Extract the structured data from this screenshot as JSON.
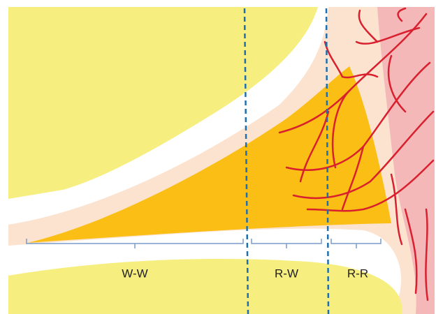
{
  "zones": [
    {
      "label": "W-W"
    },
    {
      "label": "R-W"
    },
    {
      "label": "R-R"
    }
  ]
}
